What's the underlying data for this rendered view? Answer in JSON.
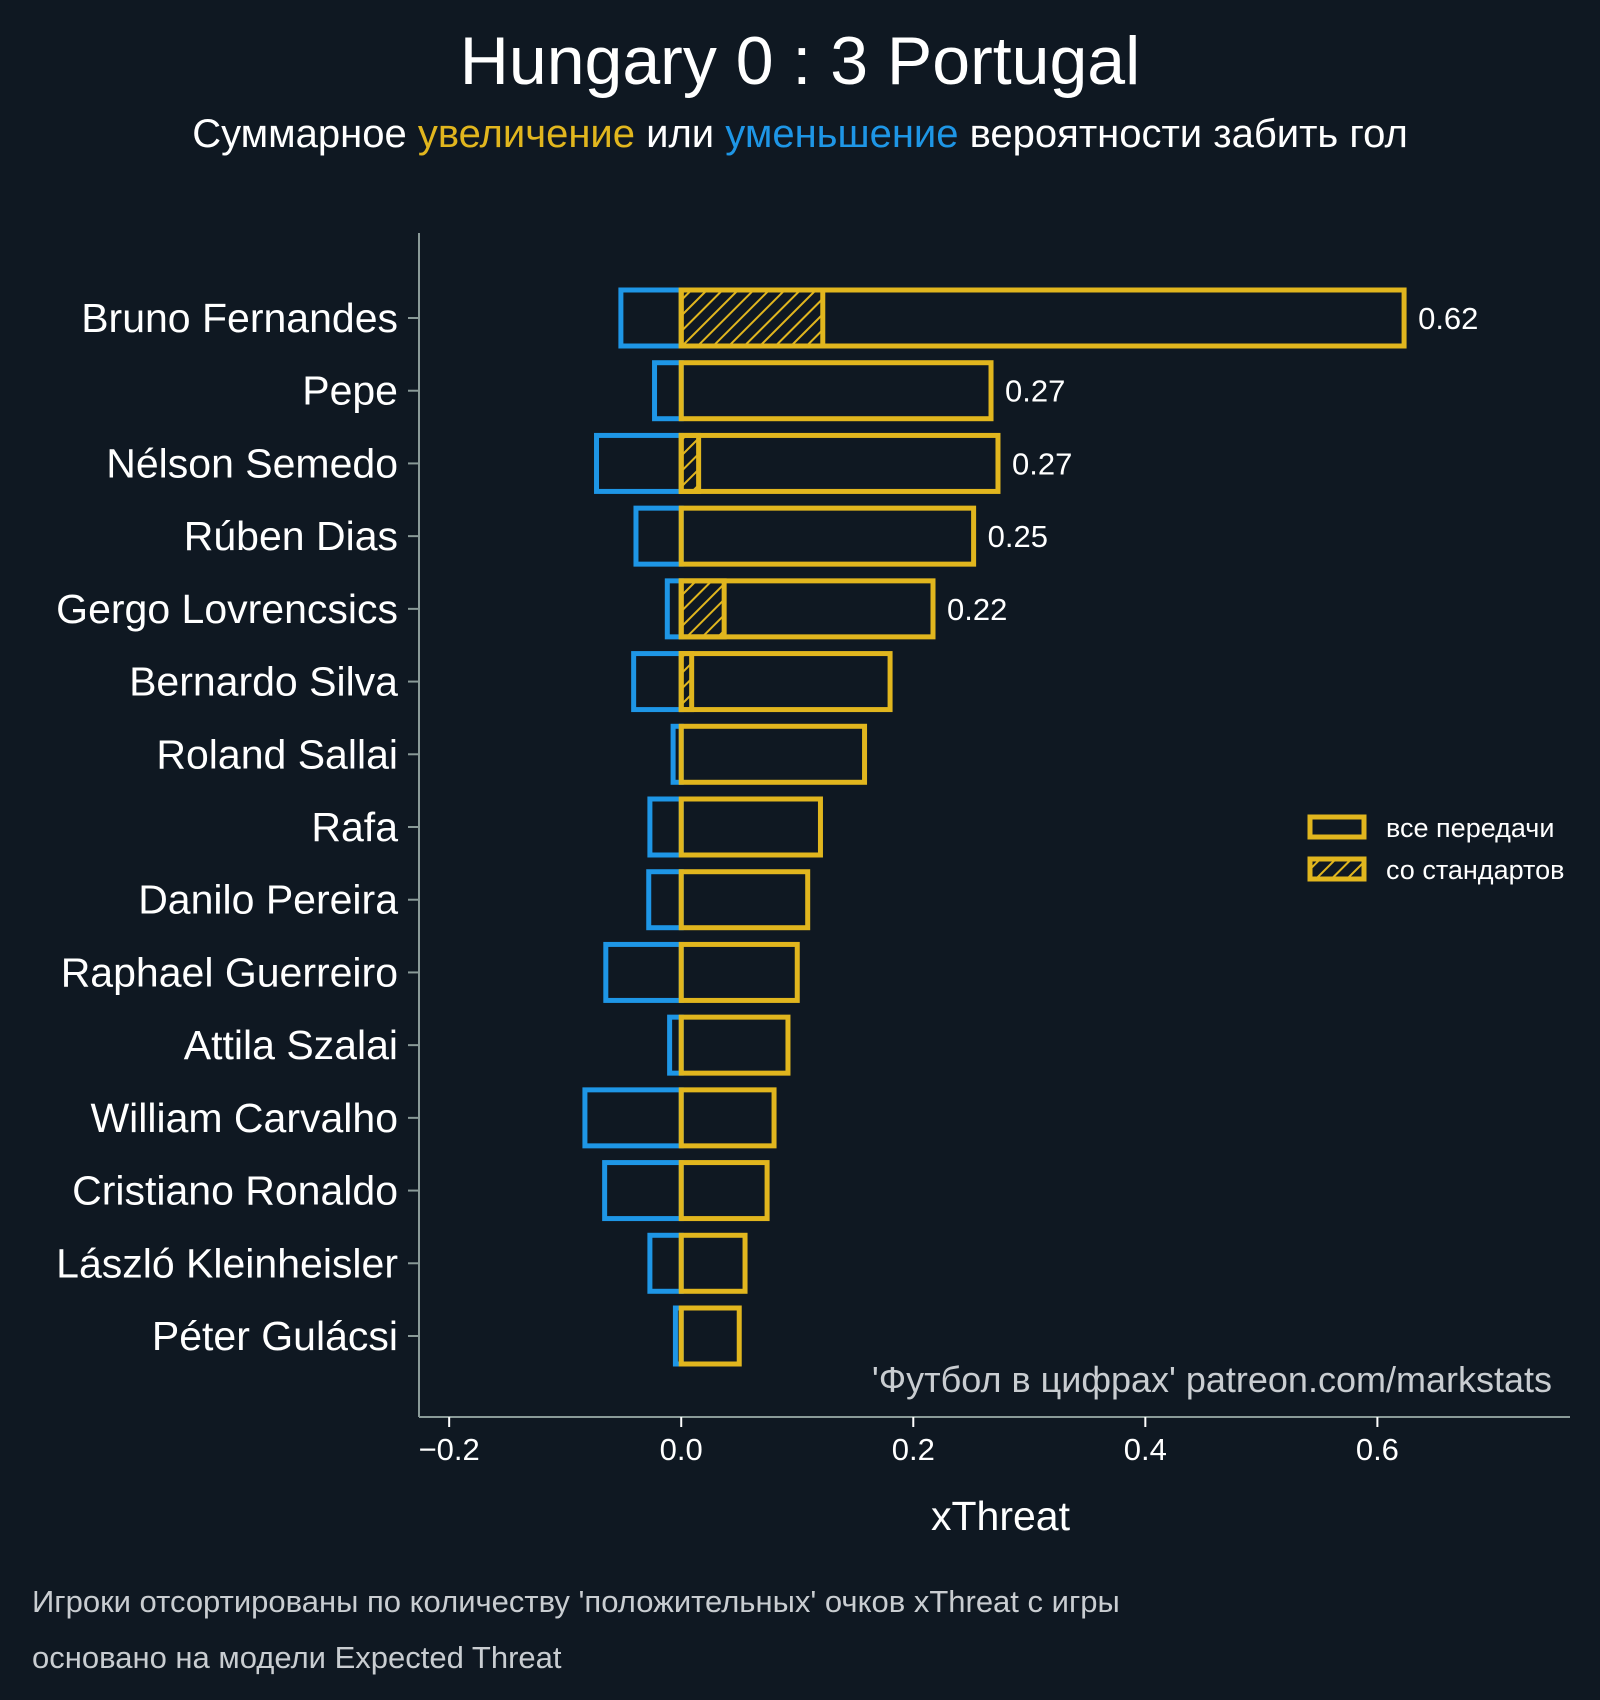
{
  "header": {
    "title": "Hungary 0 : 3 Portugal",
    "subtitle_parts": [
      {
        "text": "Суммарное ",
        "color": "#ffffff"
      },
      {
        "text": "увеличение",
        "color": "#e1b61e"
      },
      {
        "text": " или ",
        "color": "#ffffff"
      },
      {
        "text": "уменьшение",
        "color": "#1e96e6"
      },
      {
        "text": " вероятности забить гол",
        "color": "#ffffff"
      }
    ]
  },
  "footer": {
    "line1": "Игроки отсортированы по количеству 'положительных' очков xThreat с игры",
    "line2": "основано на модели Expected Threat"
  },
  "colors": {
    "background": "#0f1822",
    "positive": "#e1b61e",
    "negative": "#1e96e6",
    "axis": "#8a9a98"
  },
  "chart_data": {
    "type": "bar",
    "orientation": "horizontal",
    "title": "Hungary 0 : 3 Portugal",
    "xlabel": "xThreat",
    "ylabel": "",
    "xlim": [
      -0.226,
      0.766
    ],
    "xticks": [
      -0.2,
      0.0,
      0.2,
      0.4,
      0.6
    ],
    "xtick_labels": [
      "−0.2",
      "0.0",
      "0.2",
      "0.4",
      "0.6"
    ],
    "grid": false,
    "annotation": "'Футбол в цифрах' patreon.com/markstats",
    "legend": {
      "placement": "right",
      "entries": [
        {
          "label": "все передачи",
          "style": "outline"
        },
        {
          "label": "со стандартов",
          "style": "hatched"
        }
      ]
    },
    "categories": [
      "Bruno Fernandes",
      "Pepe",
      "Nélson Semedo",
      "Rúben Dias",
      "Gergo Lovrencsics",
      "Bernardo Silva",
      "Roland Sallai",
      "Rafa",
      "Danilo Pereira",
      "Raphael Guerreiro",
      "Attila Szalai",
      "William Carvalho",
      "Cristiano Ronaldo",
      "László Kleinheisler",
      "Péter Gulácsi"
    ],
    "series": [
      {
        "name": "positive (все передачи)",
        "color": "#e1b61e",
        "values": [
          0.623,
          0.267,
          0.273,
          0.252,
          0.217,
          0.18,
          0.158,
          0.12,
          0.109,
          0.1,
          0.092,
          0.08,
          0.074,
          0.055,
          0.05
        ]
      },
      {
        "name": "positive from set pieces (со стандартов)",
        "color": "#e1b61e",
        "hatched": true,
        "values": [
          0.122,
          0,
          0.015,
          0,
          0.037,
          0.009,
          0,
          0,
          0,
          0,
          0,
          0,
          0,
          0,
          0
        ]
      },
      {
        "name": "negative",
        "color": "#1e96e6",
        "values": [
          -0.052,
          -0.023,
          -0.073,
          -0.039,
          -0.012,
          -0.041,
          -0.007,
          -0.027,
          -0.028,
          -0.065,
          -0.01,
          -0.083,
          -0.066,
          -0.027,
          -0.005
        ]
      }
    ],
    "value_labels": [
      "0.62",
      "0.27",
      "0.27",
      "0.25",
      "0.22",
      null,
      null,
      null,
      null,
      null,
      null,
      null,
      null,
      null,
      null
    ]
  }
}
